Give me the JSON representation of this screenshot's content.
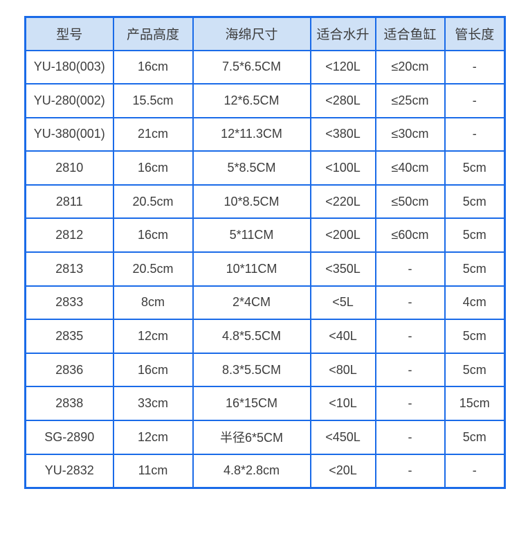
{
  "colors": {
    "table_border": "#1a6be8",
    "header_bg": "#cfe1f6",
    "cell_bg": "#ffffff",
    "text": "#3d3d3d",
    "page_bg": "#ffffff"
  },
  "chart_data": {
    "type": "table",
    "columns": [
      "型号",
      "产品高度",
      "海绵尺寸",
      "适合水升",
      "适合鱼缸",
      "管长度"
    ],
    "rows": [
      [
        "YU-180(003)",
        "16cm",
        "7.5*6.5CM",
        "<120L",
        "≤20cm",
        "-"
      ],
      [
        "YU-280(002)",
        "15.5cm",
        "12*6.5CM",
        "<280L",
        "≤25cm",
        "-"
      ],
      [
        "YU-380(001)",
        "21cm",
        "12*11.3CM",
        "<380L",
        "≤30cm",
        "-"
      ],
      [
        "2810",
        "16cm",
        "5*8.5CM",
        "<100L",
        "≤40cm",
        "5cm"
      ],
      [
        "2811",
        "20.5cm",
        "10*8.5CM",
        "<220L",
        "≤50cm",
        "5cm"
      ],
      [
        "2812",
        "16cm",
        "5*11CM",
        "<200L",
        "≤60cm",
        "5cm"
      ],
      [
        "2813",
        "20.5cm",
        "10*11CM",
        "<350L",
        "-",
        "5cm"
      ],
      [
        "2833",
        "8cm",
        "2*4CM",
        "<5L",
        "-",
        "4cm"
      ],
      [
        "2835",
        "12cm",
        "4.8*5.5CM",
        "<40L",
        "-",
        "5cm"
      ],
      [
        "2836",
        "16cm",
        "8.3*5.5CM",
        "<80L",
        "-",
        "5cm"
      ],
      [
        "2838",
        "33cm",
        "16*15CM",
        "<10L",
        "-",
        "15cm"
      ],
      [
        "SG-2890",
        "12cm",
        "半径6*5CM",
        "<450L",
        "-",
        "5cm"
      ],
      [
        "YU-2832",
        "11cm",
        "4.8*2.8cm",
        "<20L",
        "-",
        "-"
      ]
    ]
  }
}
